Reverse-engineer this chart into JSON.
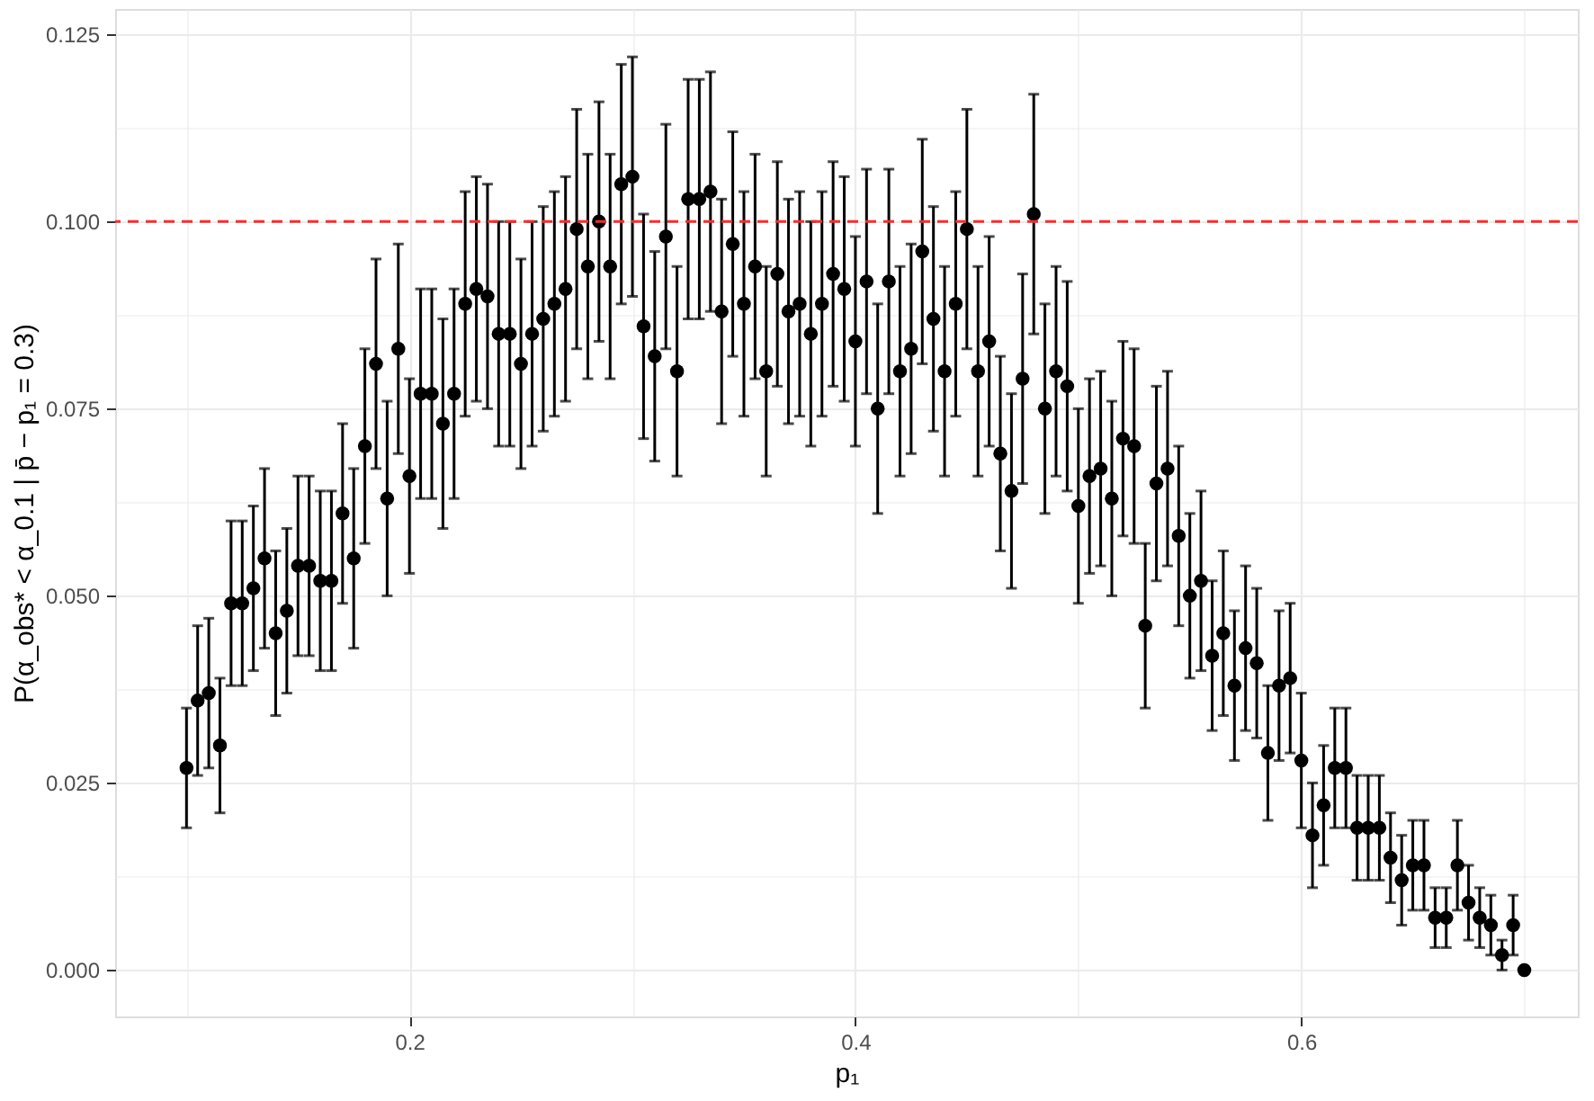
{
  "chart_data": {
    "type": "scatter",
    "xlabel": "p₁",
    "ylabel": "P(α_obs* < α_0.1 | p̄ − p₁ = 0.3)",
    "x": [
      0.1,
      0.105,
      0.11,
      0.115,
      0.12,
      0.125,
      0.13,
      0.135,
      0.14,
      0.145,
      0.15,
      0.155,
      0.16,
      0.165,
      0.17,
      0.175,
      0.18,
      0.185,
      0.19,
      0.195,
      0.2,
      0.205,
      0.21,
      0.215,
      0.22,
      0.225,
      0.23,
      0.235,
      0.24,
      0.245,
      0.25,
      0.255,
      0.26,
      0.265,
      0.27,
      0.275,
      0.28,
      0.285,
      0.29,
      0.295,
      0.3,
      0.305,
      0.31,
      0.315,
      0.32,
      0.325,
      0.33,
      0.335,
      0.34,
      0.345,
      0.35,
      0.355,
      0.36,
      0.365,
      0.37,
      0.375,
      0.38,
      0.385,
      0.39,
      0.395,
      0.4,
      0.405,
      0.41,
      0.415,
      0.42,
      0.425,
      0.43,
      0.435,
      0.44,
      0.445,
      0.45,
      0.455,
      0.46,
      0.465,
      0.47,
      0.475,
      0.48,
      0.485,
      0.49,
      0.495,
      0.5,
      0.505,
      0.51,
      0.515,
      0.52,
      0.525,
      0.53,
      0.535,
      0.54,
      0.545,
      0.55,
      0.555,
      0.56,
      0.565,
      0.57,
      0.575,
      0.58,
      0.585,
      0.59,
      0.595,
      0.6,
      0.605,
      0.61,
      0.615,
      0.62,
      0.625,
      0.63,
      0.635,
      0.64,
      0.645,
      0.65,
      0.655,
      0.66,
      0.665,
      0.67,
      0.675,
      0.68,
      0.685,
      0.69,
      0.695,
      0.7
    ],
    "series": [
      {
        "color": "#000000",
        "values": [
          0.027,
          0.036,
          0.037,
          0.03,
          0.049,
          0.049,
          0.051,
          0.055,
          0.045,
          0.048,
          0.054,
          0.054,
          0.052,
          0.052,
          0.061,
          0.055,
          0.07,
          0.081,
          0.063,
          0.083,
          0.066,
          0.077,
          0.077,
          0.073,
          0.077,
          0.089,
          0.091,
          0.09,
          0.085,
          0.085,
          0.081,
          0.085,
          0.087,
          0.089,
          0.091,
          0.099,
          0.094,
          0.1,
          0.094,
          0.105,
          0.106,
          0.086,
          0.082,
          0.098,
          0.08,
          0.103,
          0.103,
          0.104,
          0.088,
          0.097,
          0.089,
          0.094,
          0.08,
          0.093,
          0.088,
          0.089,
          0.085,
          0.089,
          0.093,
          0.091,
          0.084,
          0.092,
          0.075,
          0.092,
          0.08,
          0.083,
          0.096,
          0.087,
          0.08,
          0.089,
          0.099,
          0.08,
          0.084,
          0.069,
          0.064,
          0.079,
          0.101,
          0.075,
          0.08,
          0.078,
          0.062,
          0.066,
          0.067,
          0.063,
          0.071,
          0.07,
          0.046,
          0.065,
          0.067,
          0.058,
          0.05,
          0.052,
          0.042,
          0.045,
          0.038,
          0.043,
          0.041,
          0.029,
          0.038,
          0.039,
          0.028,
          0.018,
          0.022,
          0.027,
          0.027,
          0.019,
          0.019,
          0.019,
          0.015,
          0.012,
          0.014,
          0.014,
          0.007,
          0.007,
          0.014,
          0.009,
          0.007,
          0.006,
          0.002,
          0.006,
          0.0
        ],
        "errors": [
          0.008,
          0.01,
          0.01,
          0.009,
          0.011,
          0.011,
          0.011,
          0.012,
          0.011,
          0.011,
          0.012,
          0.012,
          0.012,
          0.012,
          0.012,
          0.012,
          0.013,
          0.014,
          0.013,
          0.014,
          0.013,
          0.014,
          0.014,
          0.014,
          0.014,
          0.015,
          0.015,
          0.015,
          0.015,
          0.015,
          0.014,
          0.015,
          0.015,
          0.015,
          0.015,
          0.016,
          0.015,
          0.016,
          0.015,
          0.016,
          0.016,
          0.015,
          0.014,
          0.015,
          0.014,
          0.016,
          0.016,
          0.016,
          0.015,
          0.015,
          0.015,
          0.015,
          0.014,
          0.015,
          0.015,
          0.015,
          0.015,
          0.015,
          0.015,
          0.015,
          0.014,
          0.015,
          0.014,
          0.015,
          0.014,
          0.014,
          0.015,
          0.015,
          0.014,
          0.015,
          0.016,
          0.014,
          0.014,
          0.013,
          0.013,
          0.014,
          0.016,
          0.014,
          0.014,
          0.014,
          0.013,
          0.013,
          0.013,
          0.013,
          0.013,
          0.013,
          0.011,
          0.013,
          0.013,
          0.012,
          0.011,
          0.012,
          0.01,
          0.011,
          0.01,
          0.011,
          0.01,
          0.009,
          0.01,
          0.01,
          0.009,
          0.007,
          0.008,
          0.008,
          0.008,
          0.007,
          0.007,
          0.007,
          0.006,
          0.006,
          0.006,
          0.006,
          0.004,
          0.004,
          0.006,
          0.005,
          0.004,
          0.004,
          0.002,
          0.004,
          null
        ]
      }
    ],
    "xlim": [
      0.068,
      0.724
    ],
    "ylim": [
      -0.0062,
      0.1284
    ],
    "xticks": [
      {
        "value": 0.1,
        "label": null
      },
      0.2,
      {
        "value": 0.3,
        "label": null
      },
      0.4,
      {
        "value": 0.5,
        "label": null
      },
      0.6,
      {
        "value": 0.7,
        "label": null
      }
    ],
    "yticks": [
      {
        "value": 0.0,
        "label": "0.000"
      },
      {
        "value": 0.0125,
        "label": null
      },
      {
        "value": 0.025,
        "label": "0.025"
      },
      {
        "value": 0.0375,
        "label": null
      },
      {
        "value": 0.05,
        "label": "0.050"
      },
      {
        "value": 0.0625,
        "label": null
      },
      {
        "value": 0.075,
        "label": "0.075"
      },
      {
        "value": 0.0875,
        "label": null
      },
      {
        "value": 0.1,
        "label": "0.100"
      },
      {
        "value": 0.1125,
        "label": null
      },
      {
        "value": 0.125,
        "label": "0.125"
      }
    ],
    "grid": true,
    "marker": "circle",
    "ref_lines": [
      {
        "axis": "y",
        "value": 0.1,
        "color": "#ff2a2a",
        "line_style": "dashed"
      }
    ]
  }
}
